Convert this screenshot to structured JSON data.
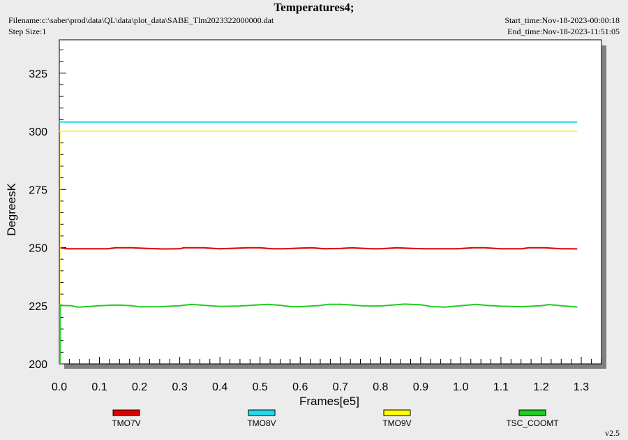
{
  "header": {
    "title": "Temperatures4;",
    "filename": "Filename:c:\\saber\\prod\\data\\QL\\data\\plot_data\\SABE_Tlm2023322000000.dat",
    "step_size": "Step Size:1",
    "start_time": "Start_time:Nov-18-2023-00:00:18",
    "end_time": "End_time:Nov-18-2023-11:51:05"
  },
  "footer": {
    "version": "v2.5"
  },
  "chart_data": {
    "type": "line",
    "title": "Temperatures4;",
    "xlabel": "Frames[e5]",
    "ylabel": "DegreesK",
    "xlim": [
      0.0,
      1.35
    ],
    "ylim": [
      200,
      335
    ],
    "x_ticks": [
      "0.0",
      "0.1",
      "0.2",
      "0.3",
      "0.4",
      "0.5",
      "0.6",
      "0.7",
      "0.8",
      "0.9",
      "1.0",
      "1.1",
      "1.2",
      "1.3"
    ],
    "y_ticks": [
      "200",
      "225",
      "250",
      "275",
      "300",
      "325"
    ],
    "grid": false,
    "legend_position": "bottom",
    "series": [
      {
        "name": "TMO7V",
        "color": "#dd0000",
        "x": [
          0.0,
          0.02,
          0.04,
          0.07,
          0.12,
          0.14,
          0.18,
          0.22,
          0.26,
          0.3,
          0.31,
          0.36,
          0.4,
          0.47,
          0.5,
          0.53,
          0.56,
          0.6,
          0.63,
          0.66,
          0.7,
          0.73,
          0.78,
          0.8,
          0.84,
          0.88,
          0.91,
          0.95,
          0.99,
          1.03,
          1.06,
          1.1,
          1.15,
          1.17,
          1.21,
          1.25,
          1.28,
          1.29
        ],
        "y": [
          250,
          249.5,
          249.5,
          249.5,
          249.5,
          249.9,
          249.9,
          249.6,
          249.4,
          249.5,
          249.9,
          249.9,
          249.5,
          249.9,
          249.9,
          249.5,
          249.5,
          249.8,
          249.9,
          249.5,
          249.6,
          249.9,
          249.5,
          249.5,
          249.9,
          249.6,
          249.5,
          249.5,
          249.5,
          249.9,
          249.9,
          249.5,
          249.5,
          249.9,
          249.9,
          249.5,
          249.5,
          249.4
        ]
      },
      {
        "name": "TMO8V",
        "color": "#22d8e8",
        "x": [
          0.0,
          0.2,
          0.4,
          0.6,
          0.8,
          1.0,
          1.2,
          1.29
        ],
        "y": [
          304,
          304,
          304,
          304,
          304,
          304,
          304,
          304
        ]
      },
      {
        "name": "TMO9V",
        "color": "#ffff00",
        "x": [
          0.0,
          0.2,
          0.4,
          0.6,
          0.8,
          1.0,
          1.2,
          1.29
        ],
        "y": [
          300,
          300,
          300,
          300,
          300,
          300,
          300,
          300
        ]
      },
      {
        "name": "TSC_COOMT",
        "color": "#22cc22",
        "x": [
          0.0,
          0.01,
          0.03,
          0.04,
          0.05,
          0.1,
          0.14,
          0.16,
          0.18,
          0.2,
          0.25,
          0.3,
          0.33,
          0.36,
          0.4,
          0.45,
          0.5,
          0.52,
          0.55,
          0.58,
          0.6,
          0.65,
          0.67,
          0.7,
          0.73,
          0.76,
          0.8,
          0.83,
          0.86,
          0.9,
          0.93,
          0.96,
          1.0,
          1.04,
          1.06,
          1.1,
          1.15,
          1.2,
          1.22,
          1.25,
          1.28,
          1.29
        ],
        "y": [
          225.5,
          225.1,
          225.0,
          224.6,
          224.4,
          225.0,
          225.3,
          225.2,
          225.0,
          224.5,
          224.6,
          225.0,
          225.6,
          225.2,
          224.7,
          224.9,
          225.4,
          225.6,
          225.2,
          224.6,
          224.6,
          225.1,
          225.6,
          225.6,
          225.3,
          224.9,
          224.9,
          225.3,
          225.7,
          225.4,
          224.6,
          224.4,
          225.0,
          225.6,
          225.2,
          224.8,
          224.6,
          225.0,
          225.5,
          225.0,
          224.6,
          224.4
        ]
      }
    ]
  }
}
